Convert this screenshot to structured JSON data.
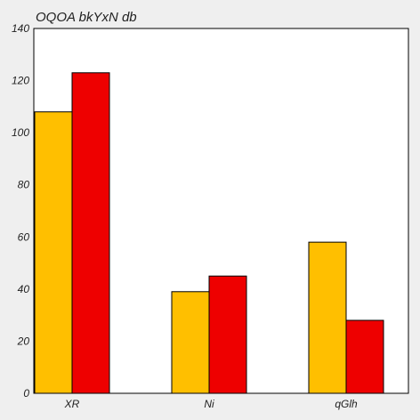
{
  "chart_data": {
    "type": "bar",
    "title": "OQOA  bkYxN db",
    "xlabel": "",
    "ylabel": "",
    "categories": [
      "XR",
      "Ni",
      "qGlh"
    ],
    "series": [
      {
        "color": "#ffbf00",
        "values": [
          108,
          39,
          58
        ]
      },
      {
        "color": "#ee0000",
        "values": [
          123,
          45,
          28
        ]
      }
    ],
    "ylim": [
      0,
      140
    ],
    "yticks": [
      0,
      20,
      40,
      60,
      80,
      100,
      120,
      140
    ],
    "grid": false,
    "legend": "none"
  },
  "colors": {
    "background": "#efefef",
    "plot_area": "#ffffff",
    "bar_outline": "#000000"
  }
}
